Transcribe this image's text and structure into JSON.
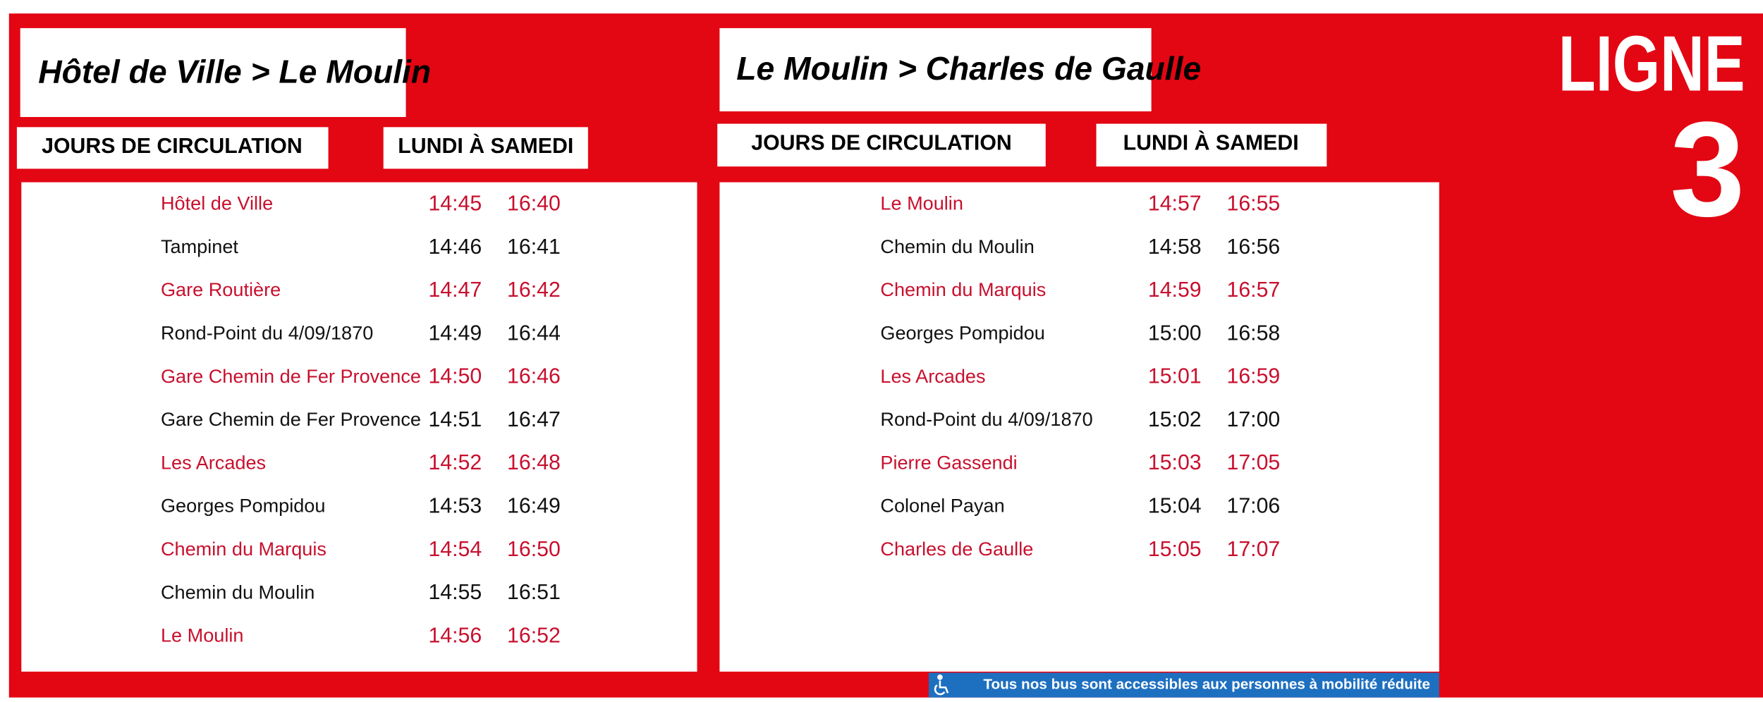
{
  "left": {
    "title": "Hôtel de Ville > Le Moulin",
    "days_label": "JOURS DE CIRCULATION",
    "days_value": "LUNDI À SAMEDI",
    "stops": [
      {
        "name": "Hôtel de Ville",
        "times": [
          "14:45",
          "16:40"
        ]
      },
      {
        "name": "Tampinet",
        "times": [
          "14:46",
          "16:41"
        ]
      },
      {
        "name": "Gare Routière",
        "times": [
          "14:47",
          "16:42"
        ]
      },
      {
        "name": "Rond-Point du 4/09/1870",
        "times": [
          "14:49",
          "16:44"
        ]
      },
      {
        "name": "Gare Chemin de Fer Provence",
        "times": [
          "14:50",
          "16:46"
        ]
      },
      {
        "name": "Gare Chemin de Fer Provence",
        "times": [
          "14:51",
          "16:47"
        ]
      },
      {
        "name": "Les Arcades",
        "times": [
          "14:52",
          "16:48"
        ]
      },
      {
        "name": "Georges Pompidou",
        "times": [
          "14:53",
          "16:49"
        ]
      },
      {
        "name": "Chemin du Marquis",
        "times": [
          "14:54",
          "16:50"
        ]
      },
      {
        "name": "Chemin du Moulin",
        "times": [
          "14:55",
          "16:51"
        ]
      },
      {
        "name": "Le Moulin",
        "times": [
          "14:56",
          "16:52"
        ]
      }
    ]
  },
  "right": {
    "title": "Le Moulin > Charles de Gaulle",
    "days_label": "JOURS DE CIRCULATION",
    "days_value": "LUNDI À SAMEDI",
    "stops": [
      {
        "name": "Le Moulin",
        "times": [
          "14:57",
          "16:55"
        ]
      },
      {
        "name": "Chemin du Moulin",
        "times": [
          "14:58",
          "16:56"
        ]
      },
      {
        "name": "Chemin du Marquis",
        "times": [
          "14:59",
          "16:57"
        ]
      },
      {
        "name": "Georges Pompidou",
        "times": [
          "15:00",
          "16:58"
        ]
      },
      {
        "name": "Les Arcades",
        "times": [
          "15:01",
          "16:59"
        ]
      },
      {
        "name": "Rond-Point du 4/09/1870",
        "times": [
          "15:02",
          "17:00"
        ]
      },
      {
        "name": "Pierre Gassendi",
        "times": [
          "15:03",
          "17:05"
        ]
      },
      {
        "name": "Colonel Payan",
        "times": [
          "15:04",
          "17:06"
        ]
      },
      {
        "name": "Charles de Gaulle",
        "times": [
          "15:05",
          "17:07"
        ]
      }
    ]
  },
  "line": {
    "label": "LIGNE",
    "number": "3"
  },
  "accessibility": "Tous nos bus sont accessibles aux personnes à mobilité réduite"
}
